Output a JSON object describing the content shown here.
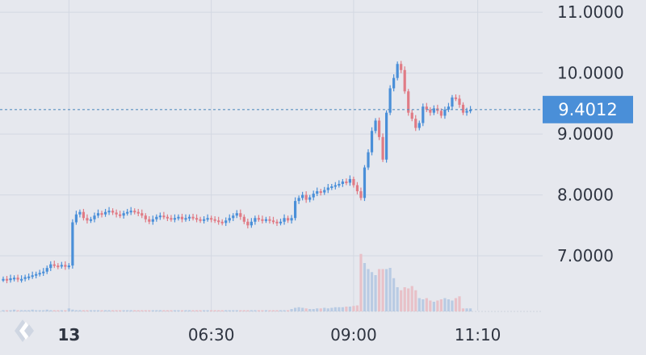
{
  "chart_data": {
    "type": "candlestick",
    "title": "",
    "ylim": [
      6.1,
      11.2
    ],
    "y_ticks": [
      "11.0000",
      "10.0000",
      "9.0000",
      "8.0000",
      "7.0000"
    ],
    "y_tick_values": [
      11,
      10,
      9,
      8,
      7
    ],
    "x_ticks": [
      {
        "label": "13",
        "bold": true,
        "index": 18
      },
      {
        "label": "06:30",
        "bold": false,
        "index": 57
      },
      {
        "label": "09:00",
        "bold": false,
        "index": 96
      },
      {
        "label": "11:10",
        "bold": false,
        "index": 130
      }
    ],
    "current_price": 9.4012,
    "current_price_label": "9.4012",
    "grid": true,
    "colors": {
      "up": "#4a8fd8",
      "down": "#e07b85",
      "grid": "#d3d8e2",
      "background": "#e6e8ee",
      "price_line": "#5a8fc0",
      "price_label_bg": "#4a8fd8",
      "volume_up": "#b9cbe3",
      "volume_down": "#e8c1c8"
    },
    "candles_close": [
      6.62,
      6.6,
      6.63,
      6.64,
      6.61,
      6.62,
      6.65,
      6.66,
      6.68,
      6.7,
      6.72,
      6.74,
      6.8,
      6.86,
      6.84,
      6.83,
      6.85,
      6.82,
      6.84,
      7.55,
      7.68,
      7.72,
      7.62,
      7.58,
      7.6,
      7.66,
      7.7,
      7.68,
      7.72,
      7.74,
      7.71,
      7.68,
      7.66,
      7.7,
      7.72,
      7.74,
      7.72,
      7.7,
      7.66,
      7.6,
      7.56,
      7.6,
      7.64,
      7.66,
      7.64,
      7.62,
      7.6,
      7.62,
      7.64,
      7.6,
      7.62,
      7.64,
      7.62,
      7.6,
      7.58,
      7.6,
      7.62,
      7.6,
      7.58,
      7.56,
      7.54,
      7.58,
      7.62,
      7.66,
      7.7,
      7.64,
      7.56,
      7.5,
      7.56,
      7.62,
      7.6,
      7.58,
      7.6,
      7.58,
      7.56,
      7.54,
      7.56,
      7.62,
      7.58,
      7.62,
      7.9,
      7.95,
      8.0,
      7.92,
      7.96,
      8.02,
      8.06,
      8.04,
      8.08,
      8.12,
      8.14,
      8.16,
      8.18,
      8.22,
      8.2,
      8.26,
      8.16,
      8.06,
      7.95,
      8.45,
      8.7,
      9.05,
      9.22,
      8.95,
      8.58,
      9.35,
      9.75,
      9.92,
      10.15,
      10.05,
      9.7,
      9.35,
      9.25,
      9.1,
      9.18,
      9.45,
      9.4,
      9.35,
      9.42,
      9.38,
      9.3,
      9.4,
      9.45,
      9.6,
      9.58,
      9.48,
      9.35,
      9.38,
      9.4
    ],
    "volume": [
      0.02,
      0.02,
      0.02,
      0.03,
      0.02,
      0.02,
      0.02,
      0.02,
      0.03,
      0.02,
      0.02,
      0.02,
      0.03,
      0.02,
      0.02,
      0.02,
      0.02,
      0.02,
      0.05,
      0.03,
      0.02,
      0.02,
      0.02,
      0.02,
      0.02,
      0.02,
      0.02,
      0.02,
      0.02,
      0.02,
      0.02,
      0.02,
      0.02,
      0.02,
      0.02,
      0.02,
      0.02,
      0.02,
      0.02,
      0.02,
      0.02,
      0.02,
      0.02,
      0.02,
      0.02,
      0.02,
      0.02,
      0.02,
      0.02,
      0.02,
      0.02,
      0.02,
      0.02,
      0.02,
      0.02,
      0.02,
      0.02,
      0.02,
      0.02,
      0.02,
      0.02,
      0.02,
      0.02,
      0.02,
      0.02,
      0.02,
      0.02,
      0.02,
      0.02,
      0.02,
      0.02,
      0.02,
      0.02,
      0.02,
      0.02,
      0.02,
      0.02,
      0.02,
      0.02,
      0.04,
      0.06,
      0.07,
      0.06,
      0.05,
      0.04,
      0.04,
      0.05,
      0.05,
      0.06,
      0.05,
      0.06,
      0.07,
      0.07,
      0.07,
      0.08,
      0.08,
      0.09,
      0.1,
      0.95,
      0.8,
      0.7,
      0.65,
      0.6,
      0.7,
      0.7,
      0.7,
      0.72,
      0.55,
      0.4,
      0.35,
      0.4,
      0.38,
      0.42,
      0.35,
      0.22,
      0.2,
      0.22,
      0.18,
      0.16,
      0.18,
      0.2,
      0.22,
      0.2,
      0.18,
      0.22,
      0.25,
      0.05,
      0.05,
      0.05
    ]
  }
}
